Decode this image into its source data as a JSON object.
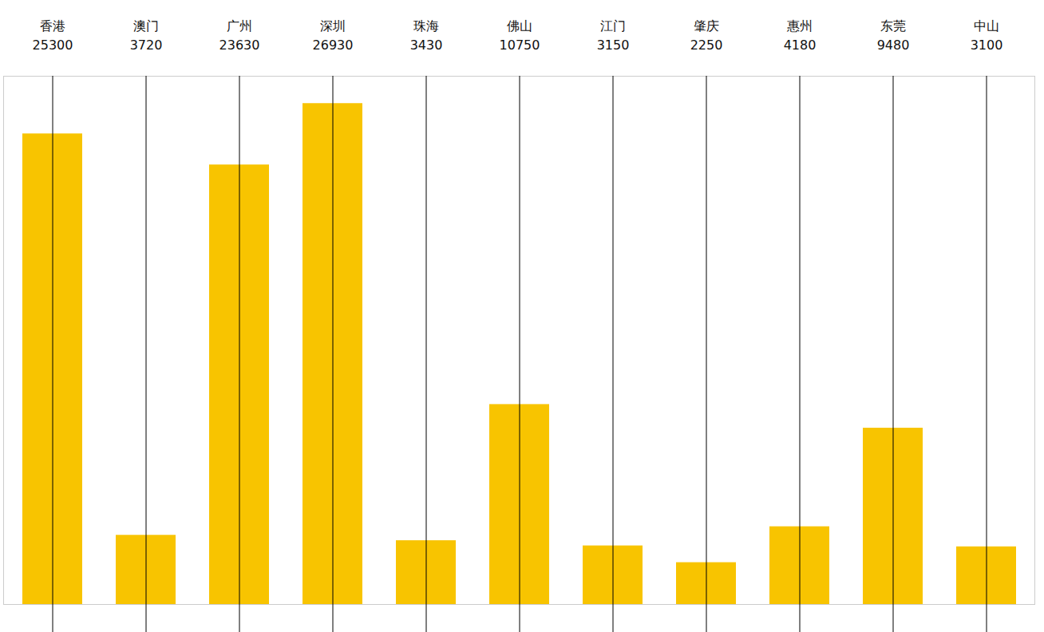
{
  "chart_data": {
    "type": "bar",
    "categories": [
      "香港",
      "澳门",
      "广州",
      "深圳",
      "珠海",
      "佛山",
      "江门",
      "肇庆",
      "惠州",
      "东莞",
      "中山"
    ],
    "values": [
      25300,
      3720,
      23630,
      26930,
      3430,
      10750,
      3150,
      2250,
      4180,
      9480,
      3100
    ],
    "color": "#f8c400",
    "ylim": [
      0,
      28400
    ],
    "yticks": [],
    "grid": false,
    "data_labels": true,
    "tick_labels": false
  }
}
